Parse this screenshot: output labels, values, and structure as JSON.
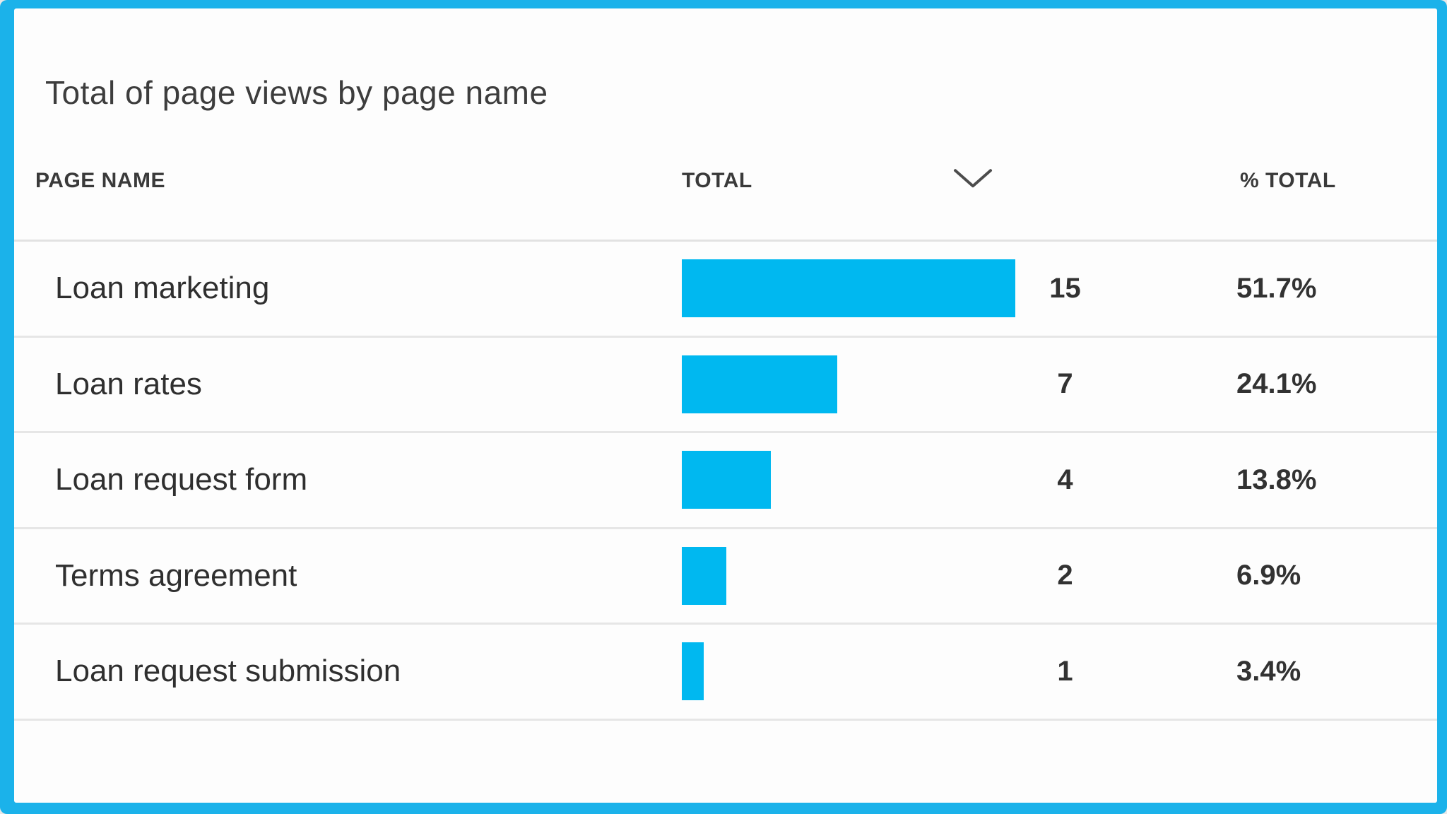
{
  "widget": {
    "title": "Total of page views by page name",
    "columns": {
      "page_name": "PAGE NAME",
      "total": "TOTAL",
      "pct_total": "% TOTAL"
    },
    "sort": {
      "column": "TOTAL",
      "direction": "descending",
      "icon": "chevron-down"
    },
    "max_total": 15,
    "rows": [
      {
        "page_name": "Loan marketing",
        "total": 15,
        "pct": "51.7%"
      },
      {
        "page_name": "Loan rates",
        "total": 7,
        "pct": "24.1%"
      },
      {
        "page_name": "Loan request form",
        "total": 4,
        "pct": "13.8%"
      },
      {
        "page_name": "Terms agreement",
        "total": 2,
        "pct": "6.9%"
      },
      {
        "page_name": "Loan request submission",
        "total": 1,
        "pct": "3.4%"
      }
    ],
    "colors": {
      "bar": "#00b8f0",
      "selection_border": "#1bb2ea",
      "divider": "#e2e2e2",
      "text": "#2f2f2f"
    }
  },
  "chart_data": {
    "type": "bar",
    "orientation": "horizontal",
    "title": "Total of page views by page name",
    "categories": [
      "Loan marketing",
      "Loan rates",
      "Loan request form",
      "Terms agreement",
      "Loan request submission"
    ],
    "values": [
      15,
      7,
      4,
      2,
      1
    ],
    "percent_of_total": [
      51.7,
      24.1,
      13.8,
      6.9,
      3.4
    ],
    "columns": [
      "PAGE NAME",
      "TOTAL",
      "% TOTAL"
    ],
    "xlim": [
      0,
      15
    ],
    "sorted_by": "TOTAL descending",
    "legend": "none",
    "grid": "row dividers only"
  }
}
